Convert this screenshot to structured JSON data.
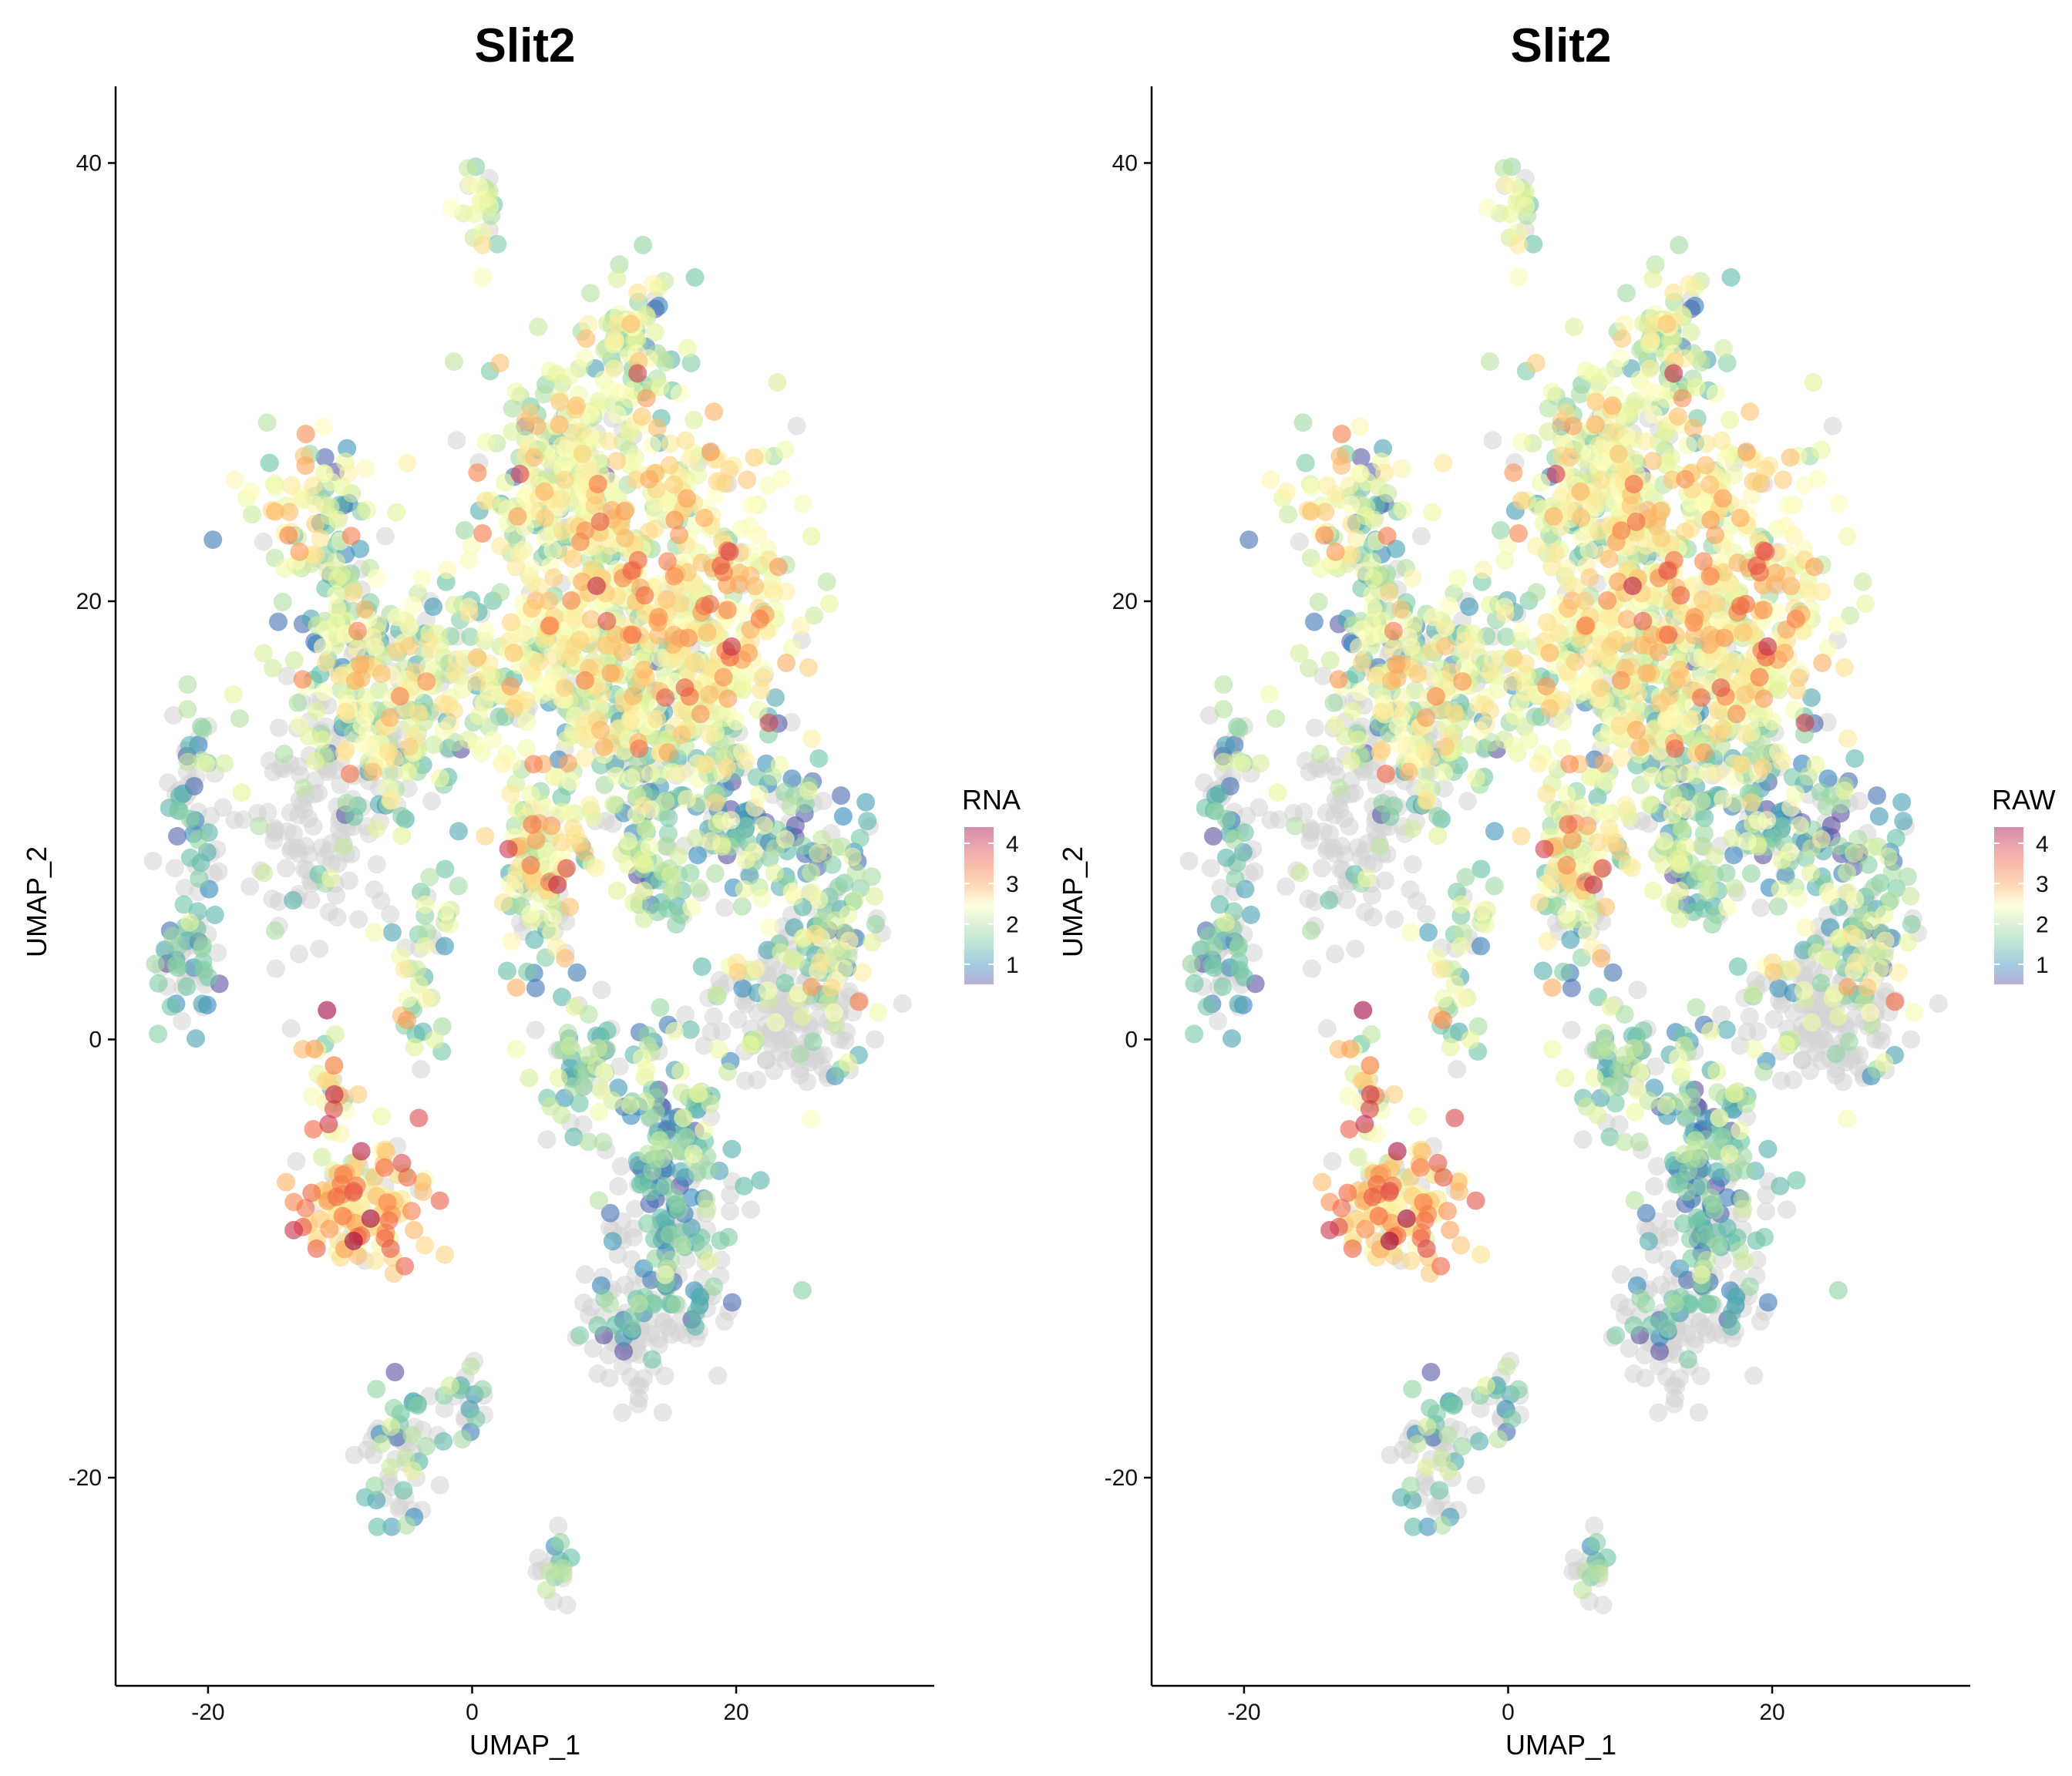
{
  "chart_data": [
    {
      "type": "scatter",
      "title": "Slit2",
      "xlabel": "UMAP_1",
      "ylabel": "UMAP_2",
      "xlim": [
        -27,
        35
      ],
      "ylim": [
        -29.5,
        43.5
      ],
      "xticks": [
        -20,
        0,
        20
      ],
      "yticks": [
        -20,
        0,
        20,
        40
      ],
      "grid": false,
      "legend": {
        "title": "RNA",
        "placement": "right",
        "ticks": [
          1,
          2,
          3,
          4
        ],
        "range": [
          0.5,
          4.4
        ]
      },
      "colorscale": "Spectral (reversed)",
      "colors": {
        "unexpressed": "#d3d3d3",
        "low": "#5e4fa2",
        "mid": "#ffffbf",
        "high": "#9e0142"
      }
    },
    {
      "type": "scatter",
      "title": "Slit2",
      "xlabel": "UMAP_1",
      "ylabel": "UMAP_2",
      "xlim": [
        -27,
        35
      ],
      "ylim": [
        -29.5,
        43.5
      ],
      "xticks": [
        -20,
        0,
        20
      ],
      "yticks": [
        -20,
        0,
        20,
        40
      ],
      "grid": false,
      "legend": {
        "title": "RAW",
        "placement": "right",
        "ticks": [
          1,
          2,
          3,
          4
        ],
        "range": [
          0.5,
          4.4
        ]
      },
      "colorscale": "Spectral (reversed)",
      "colors": {
        "unexpressed": "#d3d3d3",
        "low": "#5e4fa2",
        "mid": "#ffffbf",
        "high": "#9e0142"
      }
    }
  ]
}
